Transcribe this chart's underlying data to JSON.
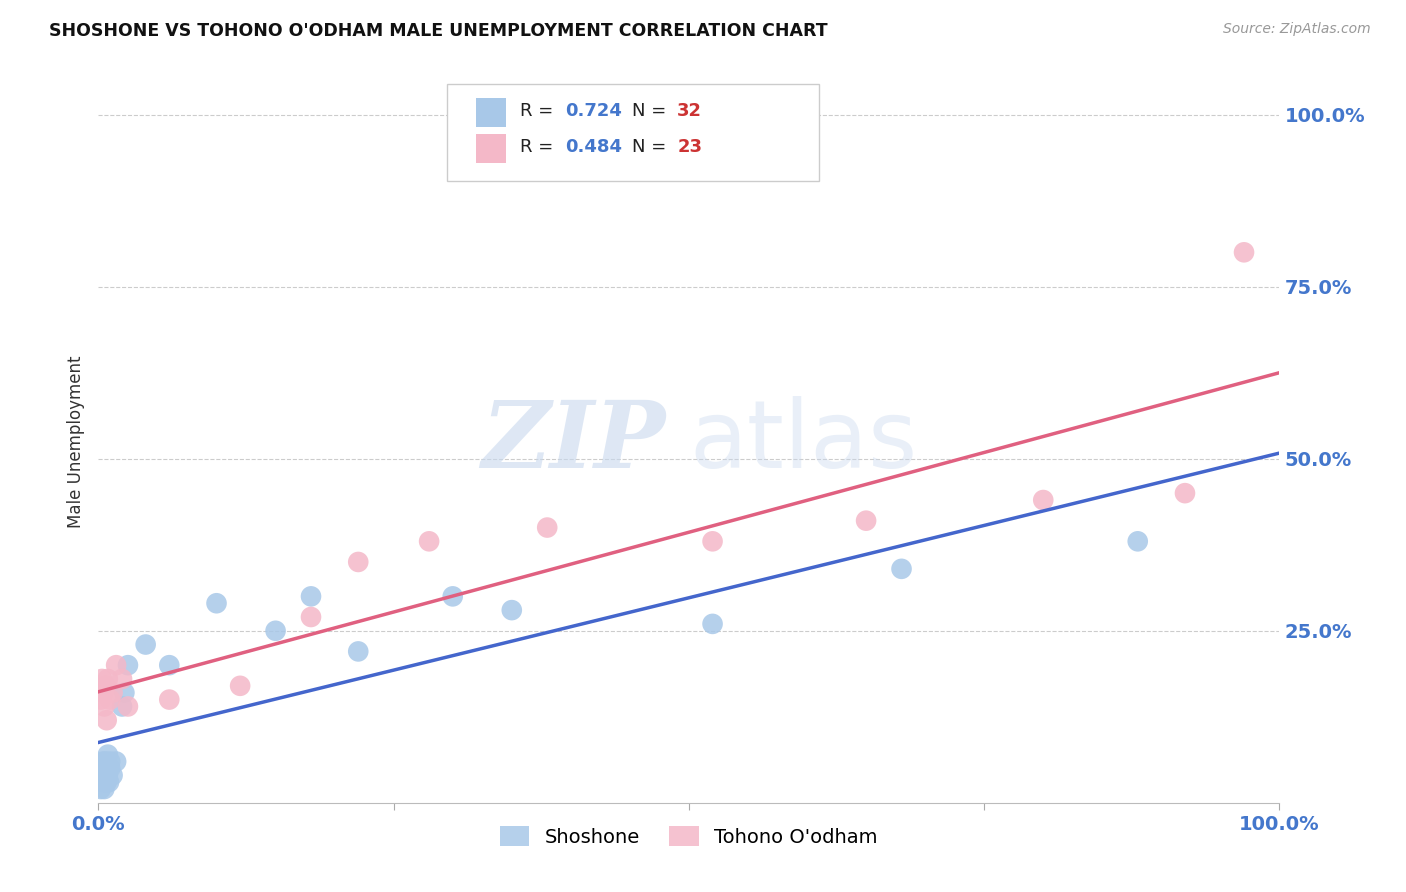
{
  "title": "SHOSHONE VS TOHONO O'ODHAM MALE UNEMPLOYMENT CORRELATION CHART",
  "source": "Source: ZipAtlas.com",
  "ylabel": "Male Unemployment",
  "watermark_zip": "ZIP",
  "watermark_atlas": "atlas",
  "shoshone_R": 0.724,
  "shoshone_N": 32,
  "tohono_R": 0.484,
  "tohono_N": 23,
  "shoshone_color": "#a8c8e8",
  "tohono_color": "#f4b8c8",
  "shoshone_line_color": "#4466cc",
  "tohono_line_color": "#e06080",
  "background_color": "#ffffff",
  "grid_color": "#cccccc",
  "ytick_color": "#4477cc",
  "xtick_color": "#4477cc",
  "legend_R_color": "#4477cc",
  "legend_N_color": "#cc3333",
  "shoshone_x": [
    0.002,
    0.003,
    0.003,
    0.004,
    0.004,
    0.005,
    0.005,
    0.006,
    0.006,
    0.007,
    0.007,
    0.008,
    0.008,
    0.009,
    0.01,
    0.01,
    0.012,
    0.015,
    0.02,
    0.022,
    0.025,
    0.04,
    0.06,
    0.1,
    0.15,
    0.18,
    0.22,
    0.3,
    0.35,
    0.52,
    0.68,
    0.88
  ],
  "shoshone_y": [
    0.02,
    0.04,
    0.05,
    0.03,
    0.06,
    0.05,
    0.02,
    0.04,
    0.06,
    0.03,
    0.05,
    0.04,
    0.07,
    0.03,
    0.06,
    0.05,
    0.04,
    0.06,
    0.14,
    0.16,
    0.2,
    0.23,
    0.2,
    0.29,
    0.25,
    0.3,
    0.22,
    0.3,
    0.28,
    0.26,
    0.34,
    0.38
  ],
  "tohono_x": [
    0.002,
    0.003,
    0.004,
    0.005,
    0.006,
    0.007,
    0.008,
    0.01,
    0.012,
    0.015,
    0.02,
    0.025,
    0.06,
    0.12,
    0.18,
    0.22,
    0.28,
    0.38,
    0.52,
    0.65,
    0.8,
    0.92,
    0.97
  ],
  "tohono_y": [
    0.15,
    0.18,
    0.16,
    0.14,
    0.17,
    0.12,
    0.18,
    0.15,
    0.16,
    0.2,
    0.18,
    0.14,
    0.15,
    0.17,
    0.27,
    0.35,
    0.38,
    0.4,
    0.38,
    0.41,
    0.44,
    0.45,
    0.8
  ],
  "shoshone_trendline": [
    0.02,
    0.38
  ],
  "tohono_trendline": [
    0.15,
    0.55
  ],
  "xlim": [
    0.0,
    1.0
  ],
  "ylim": [
    0.0,
    1.05
  ],
  "yticks": [
    0.25,
    0.5,
    0.75,
    1.0
  ],
  "ytick_labels": [
    "25.0%",
    "50.0%",
    "75.0%",
    "100.0%"
  ],
  "xtick_positions": [
    0.0,
    0.25,
    0.5,
    0.75,
    1.0
  ],
  "xtick_labels": [
    "0.0%",
    "",
    "",
    "",
    "100.0%"
  ]
}
